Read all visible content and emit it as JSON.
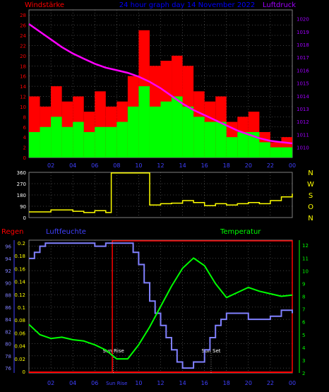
{
  "header": {
    "left_label": "Windstärke",
    "center_label": "24 hour graph day  14 November 2022",
    "right_label": "Luftdruck"
  },
  "colors": {
    "background": "#000000",
    "grid": "#808080",
    "wind_avg": "#00ff00",
    "wind_gust": "#ff0000",
    "pressure": "#ff00ff",
    "direction": "#ffff00",
    "humidity": "#8080ff",
    "temperature": "#00ff00",
    "rain": "#ff0000",
    "left_axis_text": "#ff0000",
    "center_text": "#0000ff",
    "right_axis_text": "#a000ff"
  },
  "chart_data": [
    {
      "type": "bar",
      "x_ticks": [
        "02",
        "04",
        "06",
        "08",
        "10",
        "12",
        "14",
        "16",
        "18",
        "20",
        "22",
        "00"
      ],
      "left_axis": {
        "label": "Windstärke",
        "ticks": [
          0,
          2,
          4,
          6,
          8,
          10,
          12,
          14,
          16,
          18,
          20,
          22,
          24,
          26,
          28
        ],
        "range": [
          0,
          29
        ]
      },
      "right_axis": {
        "label": "Luftdruck",
        "ticks": [
          1010,
          1011,
          1012,
          1013,
          1014,
          1015,
          1016,
          1017,
          1018,
          1019,
          1020
        ],
        "range": [
          1009.2,
          1020.7
        ]
      },
      "series": [
        {
          "kind": "gust_bars",
          "hours": [
            0,
            1,
            2,
            3,
            4,
            5,
            6,
            7,
            8,
            9,
            10,
            11,
            12,
            13,
            14,
            15,
            16,
            17,
            18,
            19,
            20,
            21,
            22,
            23
          ],
          "values": [
            12,
            10,
            14,
            11,
            12,
            9,
            13,
            10,
            11,
            16,
            25,
            18,
            19,
            20,
            18,
            13,
            11,
            12,
            7,
            8,
            9,
            5,
            3,
            4
          ]
        },
        {
          "kind": "avg_bars",
          "hours": [
            0,
            1,
            2,
            3,
            4,
            5,
            6,
            7,
            8,
            9,
            10,
            11,
            12,
            13,
            14,
            15,
            16,
            17,
            18,
            19,
            20,
            21,
            22,
            23
          ],
          "values": [
            5,
            6,
            8,
            6,
            7,
            5,
            6,
            6,
            7,
            10,
            14,
            10,
            11,
            12,
            10,
            8,
            7,
            7,
            4,
            5,
            5,
            3,
            2,
            2
          ]
        },
        {
          "kind": "pressure_line",
          "x": [
            0,
            1,
            2,
            3,
            4,
            5,
            6,
            7,
            8,
            9,
            10,
            11,
            12,
            13,
            14,
            15,
            16,
            17,
            18,
            19,
            20,
            21,
            22,
            23,
            24
          ],
          "values": [
            1019.6,
            1019.0,
            1018.4,
            1017.8,
            1017.3,
            1016.9,
            1016.5,
            1016.2,
            1016.0,
            1015.8,
            1015.5,
            1015.1,
            1014.6,
            1014.0,
            1013.4,
            1012.9,
            1012.5,
            1012.1,
            1011.7,
            1011.3,
            1011.0,
            1010.7,
            1010.5,
            1010.4,
            1010.3
          ]
        }
      ]
    },
    {
      "type": "line",
      "x_ticks": [],
      "left_axis": {
        "ticks": [
          0,
          90,
          180,
          270,
          360
        ],
        "range": [
          0,
          360
        ]
      },
      "right_axis": {
        "ticks": [
          "N",
          "W",
          "S",
          "O",
          "N"
        ]
      },
      "series": [
        {
          "kind": "direction_line",
          "x": [
            0,
            1,
            2,
            3,
            4,
            5,
            6,
            7,
            7.5,
            10.8,
            11,
            12,
            13,
            14,
            15,
            16,
            17,
            18,
            19,
            20,
            21,
            22,
            23,
            24
          ],
          "values": [
            45,
            45,
            60,
            60,
            50,
            40,
            55,
            40,
            355,
            355,
            100,
            110,
            115,
            135,
            120,
            95,
            110,
            100,
            110,
            120,
            110,
            135,
            165,
            190
          ]
        }
      ]
    },
    {
      "type": "line",
      "x_ticks": [
        "02",
        "04",
        "06",
        "Sun Rise",
        "10",
        "12",
        "14",
        "16",
        "18",
        "20",
        "22",
        "00"
      ],
      "legend_left": "Regen",
      "legend_mid": "Luftfeuchte",
      "legend_right": "Temperatur",
      "humidity_axis": {
        "ticks": [
          76,
          78,
          80,
          82,
          84,
          86,
          88,
          90,
          92,
          94,
          96
        ],
        "range": [
          75.2,
          97.0
        ]
      },
      "rain_axis": {
        "ticks": [
          "0",
          "0.02",
          "0.04",
          "0.06",
          "0.08",
          "0.1",
          "0.12",
          "0.14",
          "0.16",
          "0.18",
          "0.2"
        ],
        "range": [
          0,
          0.2
        ]
      },
      "temp_axis": {
        "ticks": [
          2,
          3,
          4,
          5,
          6,
          7,
          8,
          9,
          10,
          11,
          12
        ],
        "range": [
          2.0,
          12.4
        ]
      },
      "annotations": [
        "Sun Rise",
        "Sun Set"
      ],
      "series": [
        {
          "kind": "humidity_line",
          "x": [
            0,
            0.5,
            1,
            1.5,
            2,
            5,
            6,
            7,
            8,
            9,
            9.5,
            10,
            10.5,
            11,
            11.5,
            12,
            12.5,
            13,
            13.5,
            14,
            14.5,
            15,
            15.5,
            16,
            16.5,
            17,
            17.5,
            18,
            19,
            20,
            21,
            22,
            23,
            24
          ],
          "values": [
            94,
            95,
            96,
            96.5,
            96.5,
            96.5,
            96,
            96.5,
            96.5,
            96.5,
            95,
            93,
            90,
            87,
            85,
            83,
            81,
            79,
            77,
            76,
            76,
            77,
            77,
            79,
            81,
            83,
            84,
            85,
            85,
            84,
            84,
            84.5,
            85.5,
            85
          ]
        },
        {
          "kind": "temperature_line",
          "x": [
            0,
            1,
            2,
            3,
            4,
            5,
            6,
            7,
            8,
            9,
            10,
            11,
            12,
            13,
            14,
            15,
            16,
            17,
            18,
            19,
            20,
            21,
            22,
            23,
            24
          ],
          "values": [
            5.8,
            5.0,
            4.7,
            4.8,
            4.6,
            4.5,
            4.2,
            3.8,
            3.1,
            3.1,
            4.2,
            5.6,
            7.2,
            8.8,
            10.2,
            11.0,
            10.4,
            9.0,
            7.9,
            8.3,
            8.7,
            8.4,
            8.2,
            8.0,
            8.1
          ]
        },
        {
          "kind": "rain_line",
          "x": [
            0,
            24
          ],
          "values": [
            0,
            0
          ]
        }
      ]
    }
  ]
}
